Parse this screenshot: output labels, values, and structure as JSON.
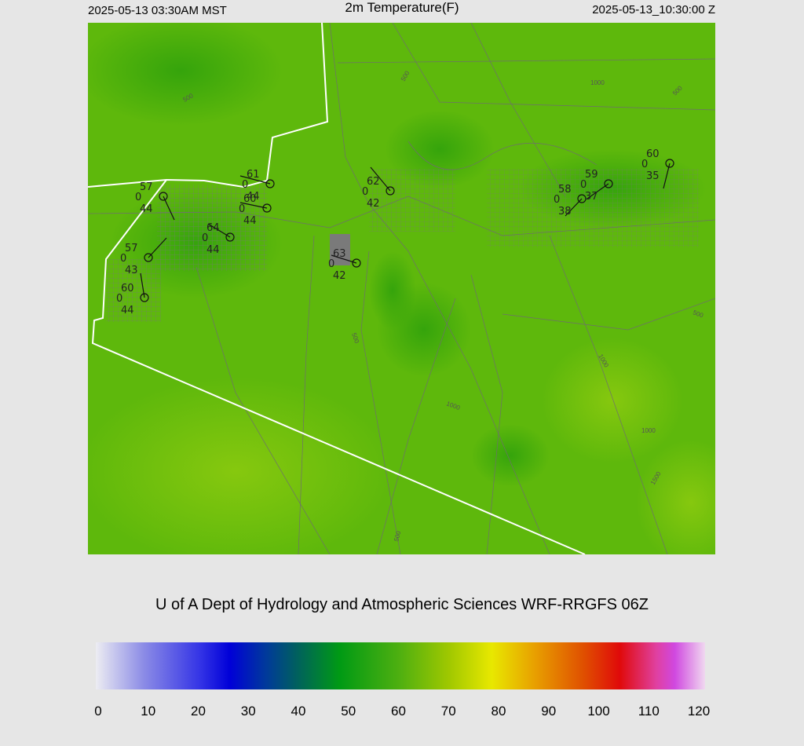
{
  "header": {
    "local_time": "2025-05-13 03:30AM MST",
    "title": "2m Temperature(F)",
    "utc_time": "2025-05-13_10:30:00 Z"
  },
  "credit": "U of A Dept of Hydrology and Atmospheric Sciences WRF-RRGFS 06Z",
  "stations": [
    {
      "temperature": 57,
      "pressure": 0,
      "dewpoint": 44
    },
    {
      "temperature": 61,
      "pressure": 0,
      "dewpoint": 44
    },
    {
      "temperature": 60,
      "pressure": 0,
      "dewpoint": 44
    },
    {
      "temperature": 64,
      "pressure": 0,
      "dewpoint": 44
    },
    {
      "temperature": 57,
      "pressure": 0,
      "dewpoint": 43
    },
    {
      "temperature": 60,
      "pressure": 0,
      "dewpoint": 44
    },
    {
      "temperature": 62,
      "pressure": 0,
      "dewpoint": 42
    },
    {
      "temperature": 63,
      "pressure": 0,
      "dewpoint": 42
    },
    {
      "temperature": 58,
      "pressure": 0,
      "dewpoint": 38
    },
    {
      "temperature": 59,
      "pressure": 0,
      "dewpoint": 37
    },
    {
      "temperature": 60,
      "pressure": 0,
      "dewpoint": 35
    }
  ],
  "contour_labels": [
    "500",
    "1000",
    "500",
    "500",
    "500",
    "500",
    "1000",
    "1000",
    "1000",
    "1500",
    "500"
  ],
  "colorbar": {
    "range": [
      0,
      120
    ],
    "ticks": [
      0,
      10,
      20,
      30,
      40,
      50,
      60,
      70,
      80,
      90,
      100,
      110,
      120
    ]
  }
}
